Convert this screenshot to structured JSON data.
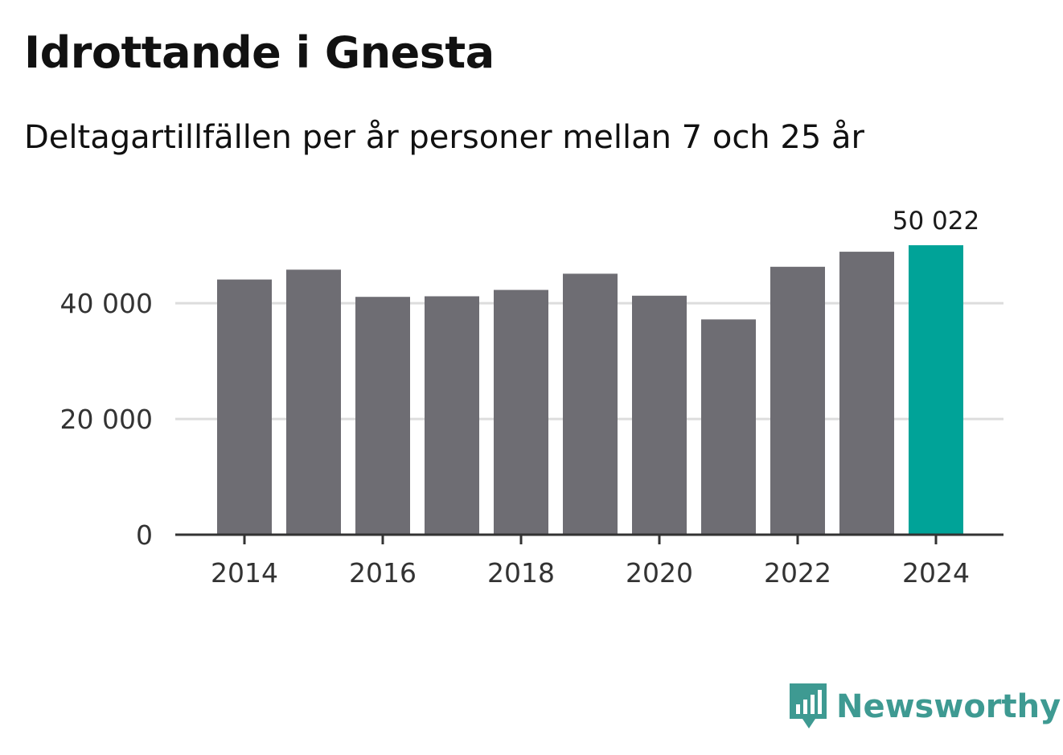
{
  "colors": {
    "bar": "#6e6d73",
    "highlight": "#00a398",
    "grid": "#dddddd",
    "axis": "#333333",
    "brand": "#3e9a92"
  },
  "brand": {
    "name": "Newsworthy",
    "icon": "newsworthy-logo-icon"
  },
  "chart_data": {
    "type": "bar",
    "title": "Idrottande i Gnesta",
    "subtitle": "Deltagartillfällen per år personer mellan 7 och 25 år",
    "xlabel": "",
    "ylabel": "",
    "categories": [
      "2014",
      "2015",
      "2016",
      "2017",
      "2018",
      "2019",
      "2020",
      "2021",
      "2022",
      "2023",
      "2024"
    ],
    "values": [
      44100,
      45800,
      41100,
      41200,
      42300,
      45100,
      41300,
      37200,
      46300,
      48900,
      50022
    ],
    "highlight_index": 10,
    "highlight_label": "50 022",
    "ylim": [
      0,
      50022
    ],
    "yticks": [
      0,
      20000,
      40000
    ],
    "ytick_labels": [
      "0",
      "20 000",
      "40 000"
    ],
    "xticks": [
      "2014",
      "2016",
      "2018",
      "2020",
      "2022",
      "2024"
    ],
    "grid": true
  }
}
